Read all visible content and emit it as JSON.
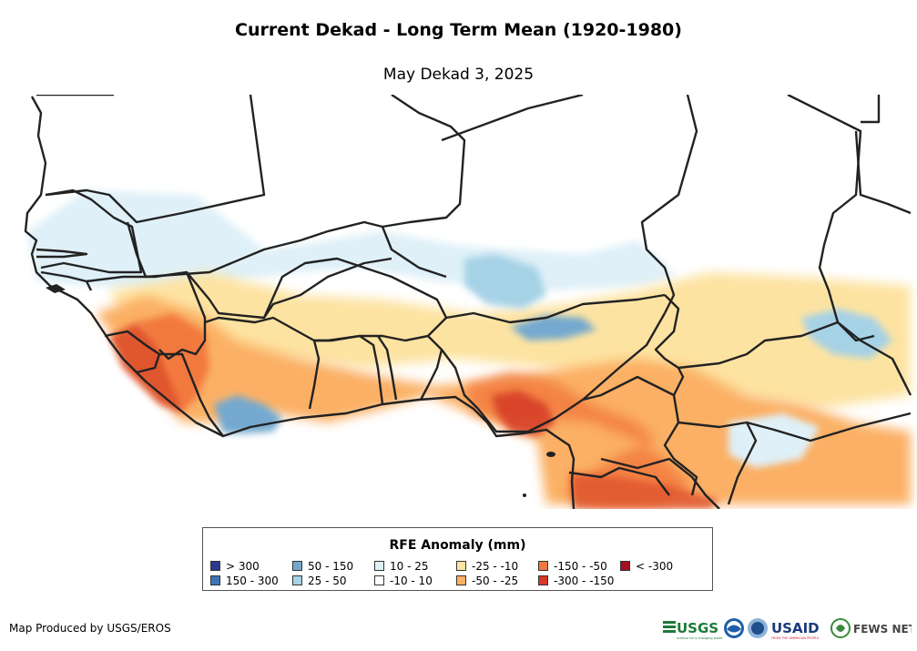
{
  "header": {
    "title": "Current Dekad - Long Term Mean (1920-1980)",
    "subtitle": "May Dekad 3, 2025"
  },
  "legend": {
    "title": "RFE Anomaly (mm)",
    "items": [
      {
        "label": "> 300",
        "color": "#2b3a8c"
      },
      {
        "label": "150 - 300",
        "color": "#3f74b8"
      },
      {
        "label": "50 - 150",
        "color": "#74a9cf"
      },
      {
        "label": "25 - 50",
        "color": "#a6d2e6"
      },
      {
        "label": "10 - 25",
        "color": "#dff0f8"
      },
      {
        "label": "-10 - 10",
        "color": "#ffffff"
      },
      {
        "label": "-25 - -10",
        "color": "#fde3a1"
      },
      {
        "label": "-50 - -25",
        "color": "#fbb065"
      },
      {
        "label": "-150 - -50",
        "color": "#f2793e"
      },
      {
        "label": "-300 - -150",
        "color": "#d63a26"
      },
      {
        "label": "< -300",
        "color": "#a50f24"
      }
    ]
  },
  "footer": {
    "credit": "Map Produced by USGS/EROS",
    "logos": {
      "usgs": "USGS",
      "usgs_tagline": "science for a changing world",
      "usaid": "USAID",
      "usaid_tagline": "FROM THE AMERICAN PEOPLE",
      "fewsnet": "FEWS NET"
    }
  }
}
